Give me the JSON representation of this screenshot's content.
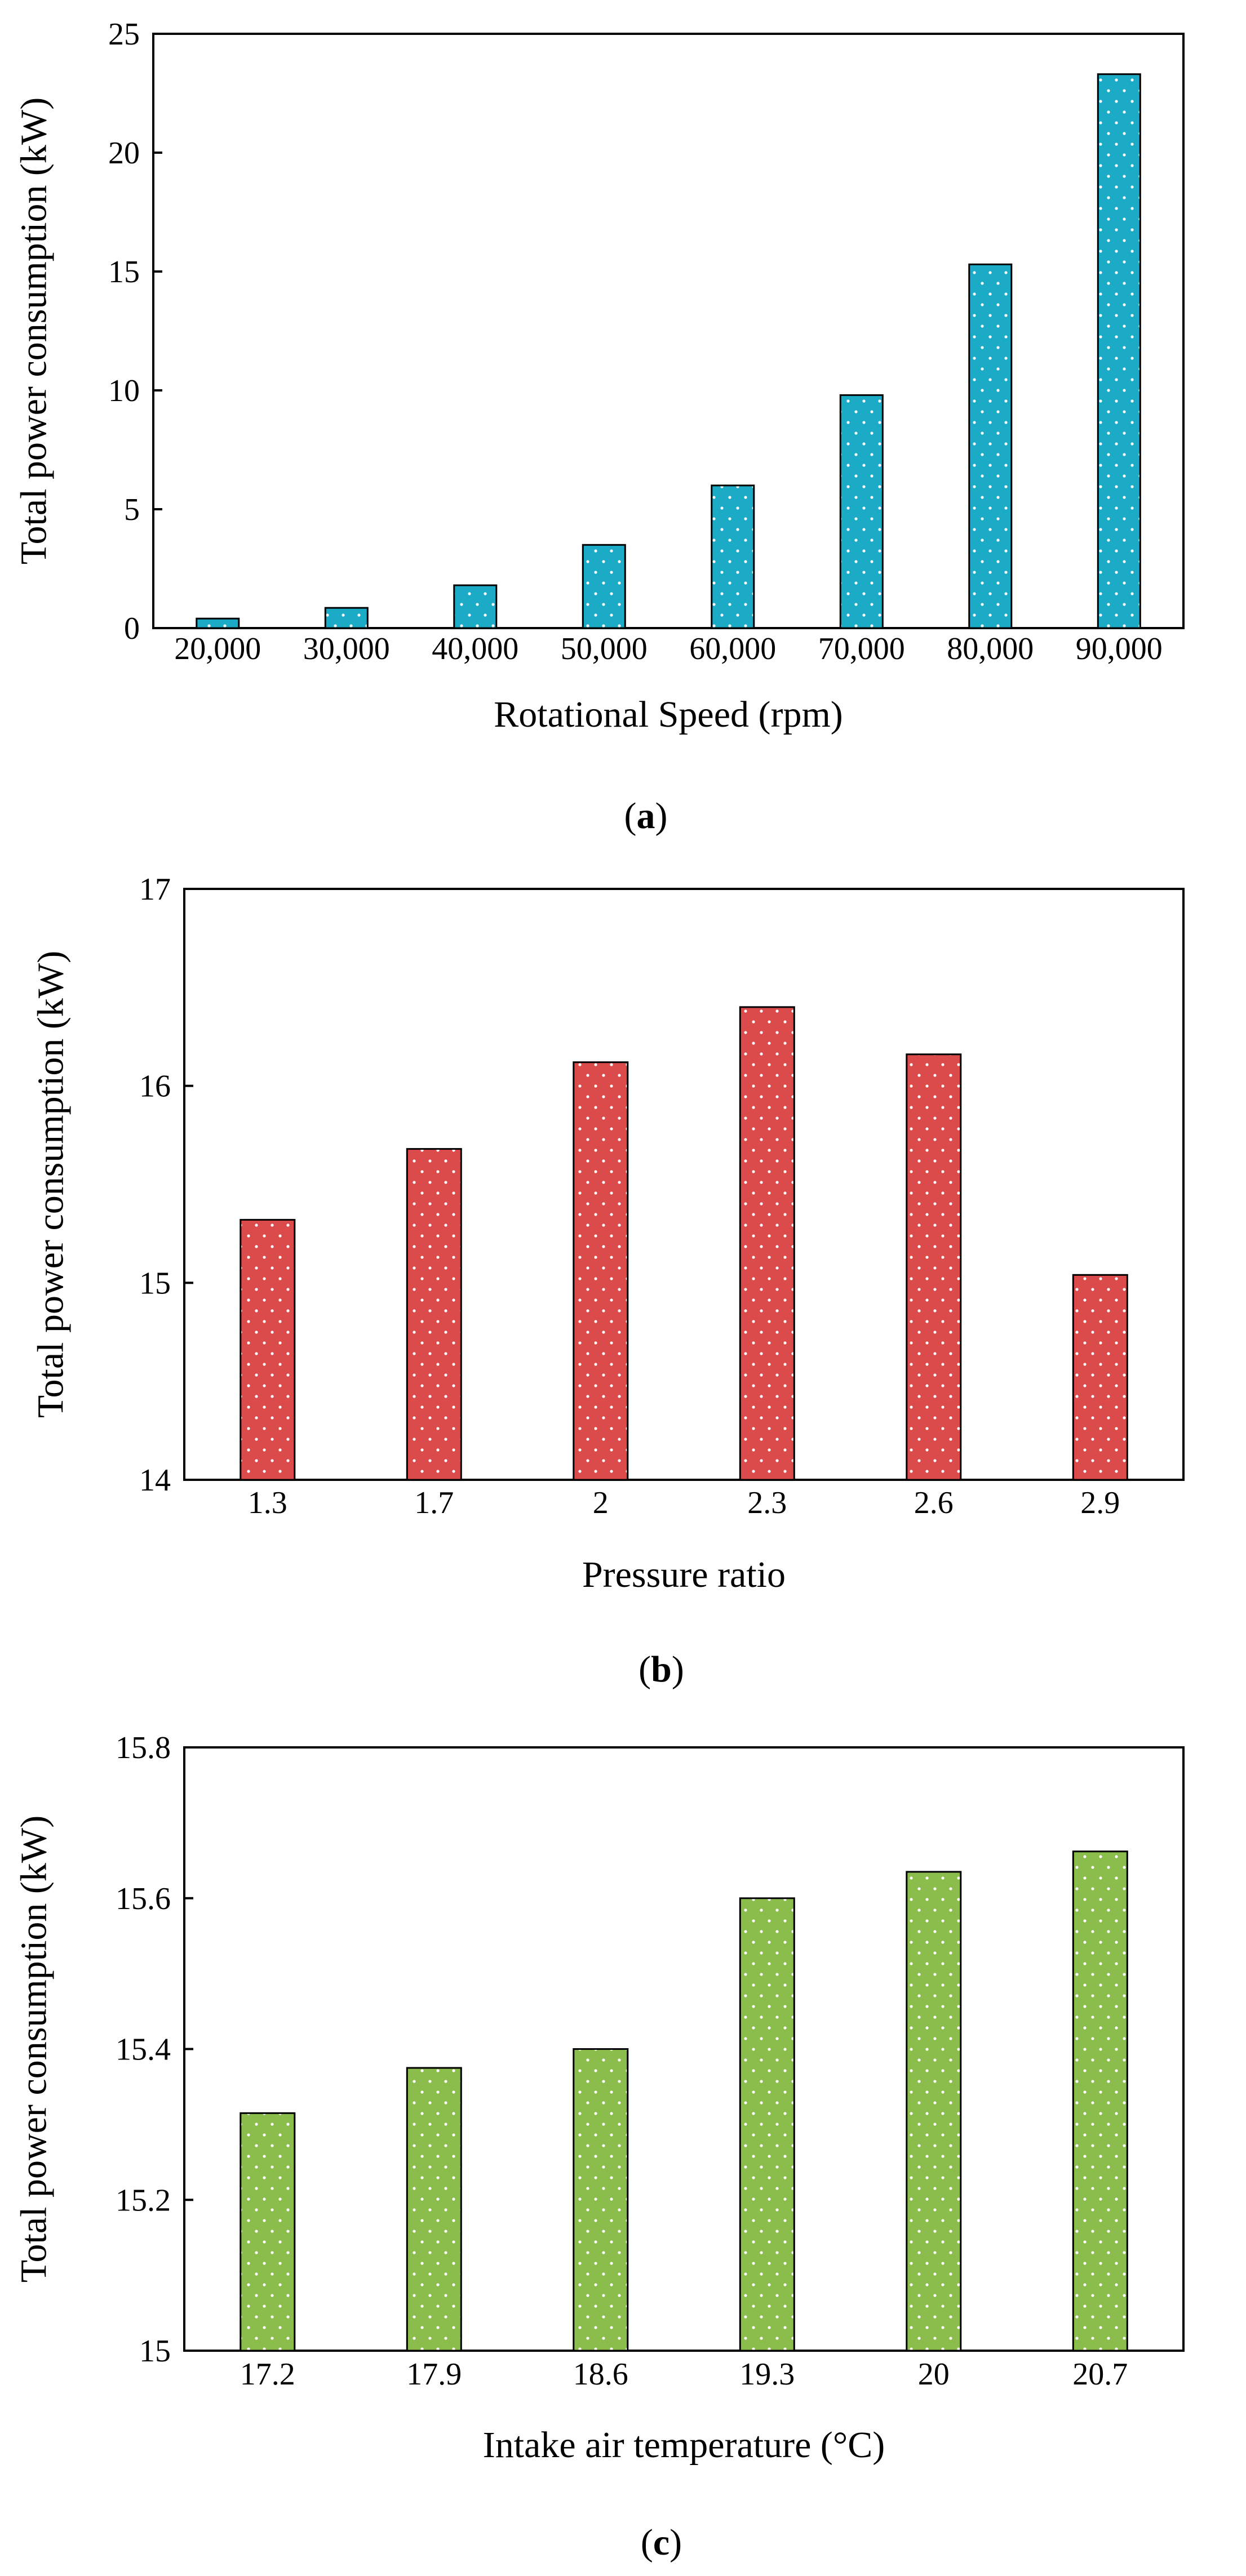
{
  "chart_data": [
    {
      "type": "bar",
      "panel": "a",
      "caption": [
        "(",
        "a",
        ")"
      ],
      "title": "",
      "xlabel": "Rotational Speed (rpm)",
      "ylabel": "Total power consumption (kW)",
      "categories": [
        "20,000",
        "30,000",
        "40,000",
        "50,000",
        "60,000",
        "70,000",
        "80,000",
        "90,000"
      ],
      "values": [
        0.4,
        0.85,
        1.8,
        3.5,
        6.0,
        9.8,
        15.3,
        23.3
      ],
      "ylim": [
        0,
        25
      ],
      "yticks": [
        "0",
        "5",
        "10",
        "15",
        "20",
        "25"
      ],
      "grid": false,
      "color": "#1cabc6",
      "pattern": "white dots"
    },
    {
      "type": "bar",
      "panel": "b",
      "caption": [
        "(",
        "b",
        ")"
      ],
      "title": "",
      "xlabel": "Pressure ratio",
      "ylabel": "Total power consumption (kW)",
      "categories": [
        "1.3",
        "1.7",
        "2",
        "2.3",
        "2.6",
        "2.9"
      ],
      "values": [
        15.32,
        15.68,
        16.12,
        16.4,
        16.16,
        15.04
      ],
      "ylim": [
        14,
        17
      ],
      "yticks": [
        "14",
        "15",
        "16",
        "17"
      ],
      "grid": false,
      "color": "#dc4b4b",
      "pattern": "white dots"
    },
    {
      "type": "bar",
      "panel": "c",
      "caption": [
        "(",
        "c",
        ")"
      ],
      "title": "",
      "xlabel": "Intake air temperature (°C)",
      "ylabel": "Total power consumption (kW)",
      "categories": [
        "17.2",
        "17.9",
        "18.6",
        "19.3",
        "20",
        "20.7"
      ],
      "values": [
        15.315,
        15.375,
        15.4,
        15.6,
        15.635,
        15.662
      ],
      "ylim": [
        15,
        15.8
      ],
      "yticks": [
        "15",
        "15.2",
        "15.4",
        "15.6",
        "15.8"
      ],
      "grid": false,
      "color": "#8bbd4c",
      "pattern": "white dots"
    }
  ]
}
